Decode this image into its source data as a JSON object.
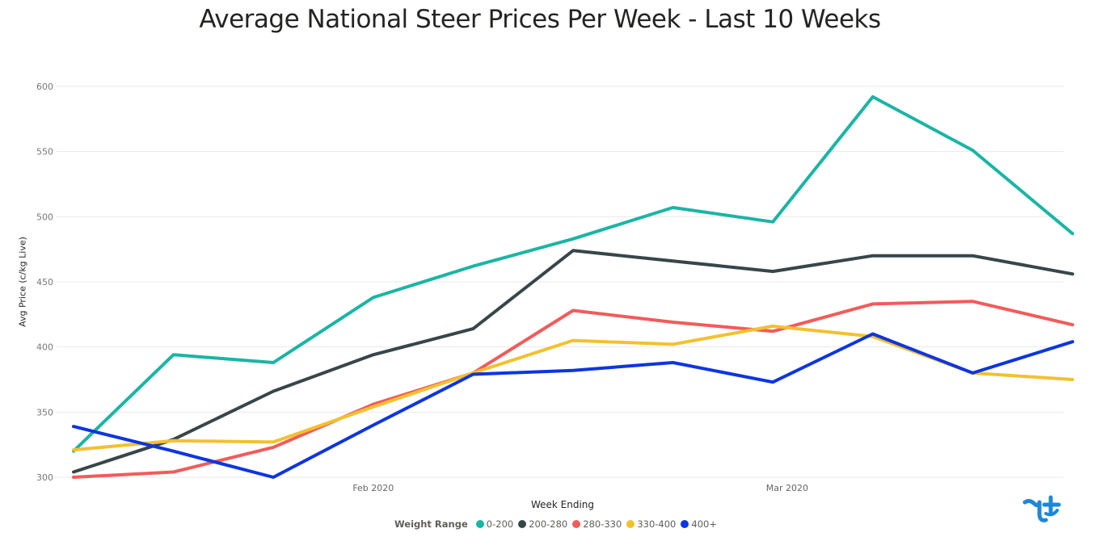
{
  "chart_data": {
    "type": "line",
    "title": "Average National Steer Prices Per Week - Last 10 Weeks",
    "xlabel": "Week Ending",
    "ylabel": "Avg Price (c/kg Live)",
    "ylim": [
      300,
      600
    ],
    "yticks": [
      300,
      350,
      400,
      450,
      500,
      550,
      600
    ],
    "x": [
      "2020-01-11",
      "2020-01-18",
      "2020-01-25",
      "2020-02-01",
      "2020-02-08",
      "2020-02-15",
      "2020-02-22",
      "2020-02-29",
      "2020-03-07",
      "2020-03-14",
      "2020-03-21"
    ],
    "xticks": [
      {
        "date": "2020-02-01",
        "label": "Feb 2020"
      },
      {
        "date": "2020-03-01",
        "label": "Mar 2020"
      }
    ],
    "grid": true,
    "legend_title": "Weight Range",
    "legend_position": "bottom",
    "series": [
      {
        "name": "0-200",
        "color": "#1ab5a5",
        "values": [
          320,
          394,
          388,
          438,
          462,
          483,
          507,
          496,
          592,
          551,
          487
        ]
      },
      {
        "name": "200-280",
        "color": "#374649",
        "values": [
          304,
          329,
          366,
          394,
          414,
          474,
          466,
          458,
          470,
          470,
          456
        ]
      },
      {
        "name": "280-330",
        "color": "#f25b5b",
        "values": [
          300,
          304,
          323,
          356,
          380,
          428,
          419,
          412,
          433,
          435,
          417
        ]
      },
      {
        "name": "330-400",
        "color": "#f2c12e",
        "values": [
          321,
          328,
          327,
          354,
          380,
          405,
          402,
          416,
          408,
          380,
          375
        ]
      },
      {
        "name": "400+",
        "color": "#0d35e0",
        "values": [
          339,
          320,
          300,
          340,
          379,
          382,
          388,
          373,
          410,
          380,
          404
        ]
      }
    ]
  }
}
